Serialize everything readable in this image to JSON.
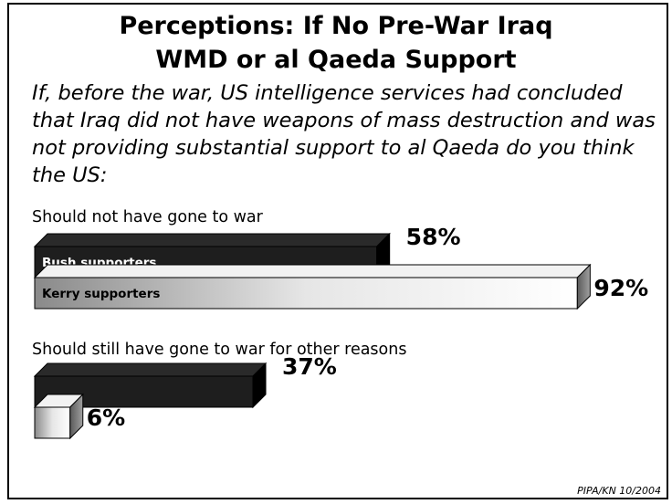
{
  "title_lines": [
    "Perceptions: If No Pre-War Iraq",
    "WMD or al Qaeda Support"
  ],
  "question": "If, before the war, US intelligence services had concluded that Iraq did not have weapons of mass destruction and was not providing substantial support to al Qaeda do you think the US:",
  "source": "PIPA/KN 10/2004",
  "colors": {
    "bush": "#1e1e1e",
    "kerry_light": "#ffffff",
    "kerry_dark": "#8a8a8a"
  },
  "chart_data": {
    "type": "bar",
    "orientation": "horizontal",
    "categories": [
      "Should not have gone to war",
      "Should still have gone to war for other reasons"
    ],
    "series": [
      {
        "name": "Bush supporters",
        "values": [
          58,
          37
        ]
      },
      {
        "name": "Kerry supporters",
        "values": [
          92,
          6
        ]
      }
    ],
    "value_labels": [
      [
        "58%",
        "37%"
      ],
      [
        "92%",
        "6%"
      ]
    ],
    "xlim": [
      0,
      100
    ],
    "grid": false,
    "legend": "bar labels inside first group"
  }
}
